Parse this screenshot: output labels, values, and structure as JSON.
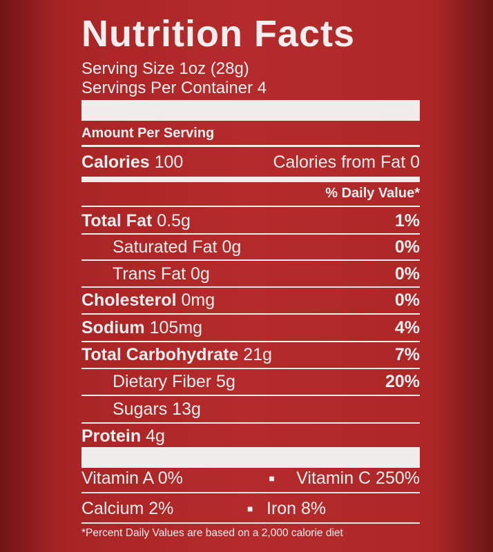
{
  "header": {
    "title": "Nutrition Facts",
    "serving_size": "Serving Size 1oz (28g)",
    "servings_per_container": "Servings Per Container 4"
  },
  "amount_per_serving": "Amount Per Serving",
  "calories": {
    "label": "Calories",
    "value": "100",
    "from_fat": "Calories from Fat 0"
  },
  "daily_value_header": "% Daily Value*",
  "rows": [
    {
      "label": "Total Fat",
      "amount": "0.5g",
      "dv": "1%"
    },
    {
      "label": "Saturated Fat",
      "amount": "0g",
      "dv": "0%"
    },
    {
      "label": "Trans Fat",
      "amount": "0g",
      "dv": "0%"
    },
    {
      "label": "Cholesterol",
      "amount": "0mg",
      "dv": "0%"
    },
    {
      "label": "Sodium",
      "amount": "105mg",
      "dv": "4%"
    },
    {
      "label": "Total Carbohydrate",
      "amount": "21g",
      "dv": "7%"
    },
    {
      "label": "Dietary Fiber",
      "amount": "5g",
      "dv": "20%"
    },
    {
      "label": "Sugars",
      "amount": "13g"
    },
    {
      "label": "Protein",
      "amount": "4g"
    }
  ],
  "vitamins": [
    [
      "Vitamin A 0%",
      "Vitamin C 250%"
    ],
    [
      "Calcium 2%",
      "Iron 8%"
    ]
  ],
  "footnote": "*Percent Daily Values are based on a 2,000 calorie diet"
}
